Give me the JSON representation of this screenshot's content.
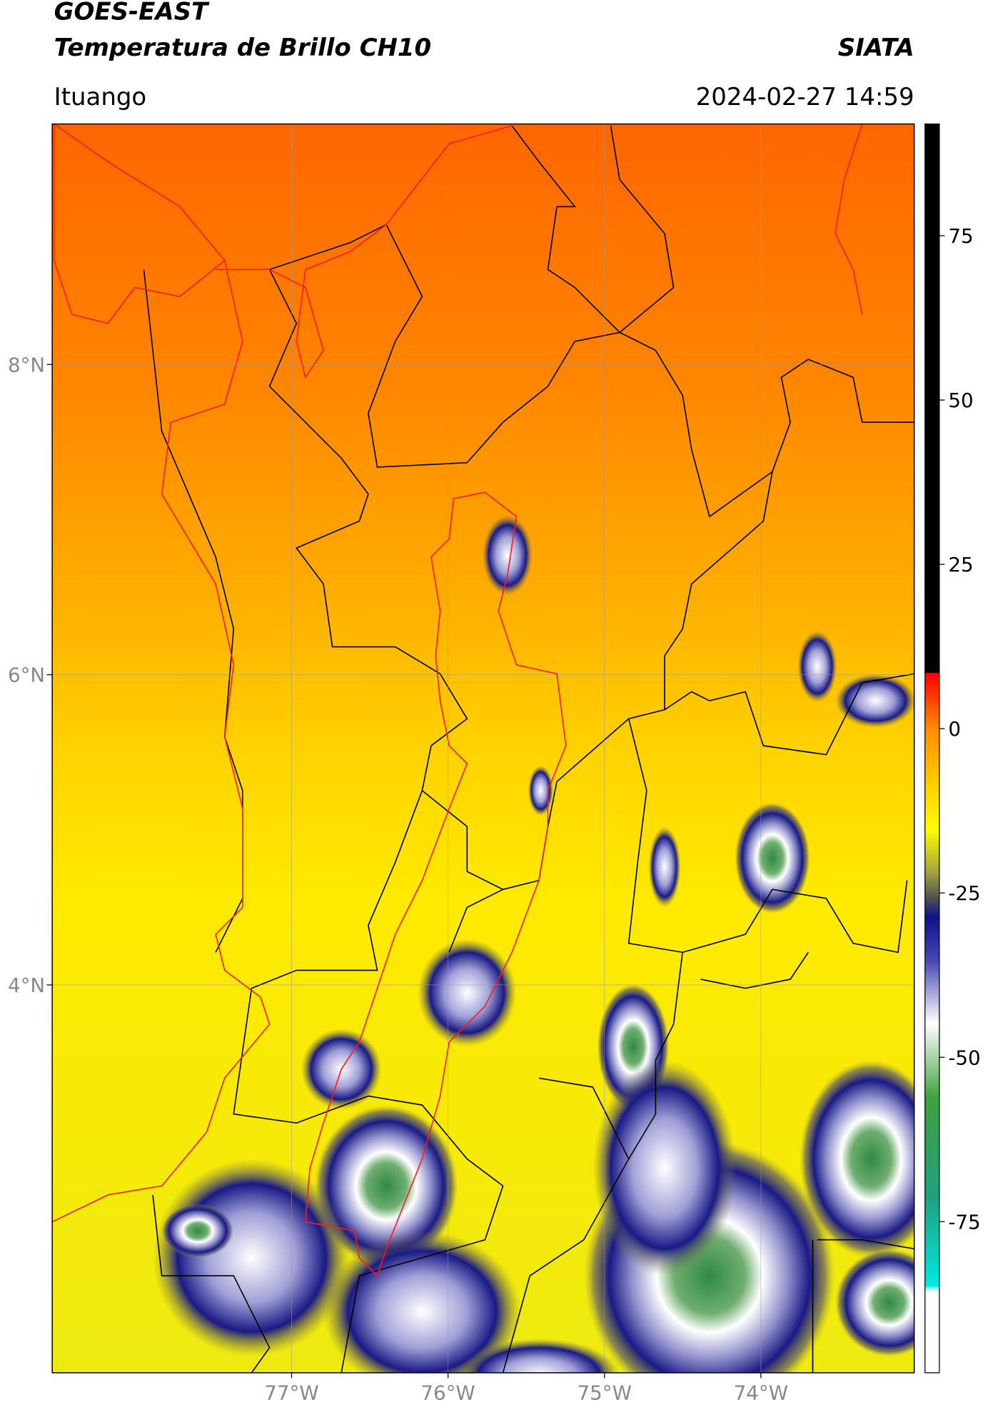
{
  "header": {
    "title": "GOES-EAST",
    "subtitle": "Temperatura de Brillo CH10",
    "source": "SIATA",
    "location": "Ituango",
    "datetime": "2024-02-27 14:59"
  },
  "map": {
    "xlim": [
      -78.53,
      -73.02
    ],
    "ylim": [
      1.5,
      9.55
    ],
    "xticks": [
      {
        "value": -77,
        "label": "77°W"
      },
      {
        "value": -76,
        "label": "76°W"
      },
      {
        "value": -75,
        "label": "75°W"
      },
      {
        "value": -74,
        "label": "74°W"
      }
    ],
    "yticks": [
      {
        "value": 4,
        "label": "4°N"
      },
      {
        "value": 6,
        "label": "6°N"
      },
      {
        "value": 8,
        "label": "8°N"
      }
    ],
    "grid": true
  },
  "colorbar": {
    "clim": [
      -98,
      92
    ],
    "ticks": [
      -75,
      -50,
      -25,
      0,
      25,
      50,
      75
    ]
  }
}
